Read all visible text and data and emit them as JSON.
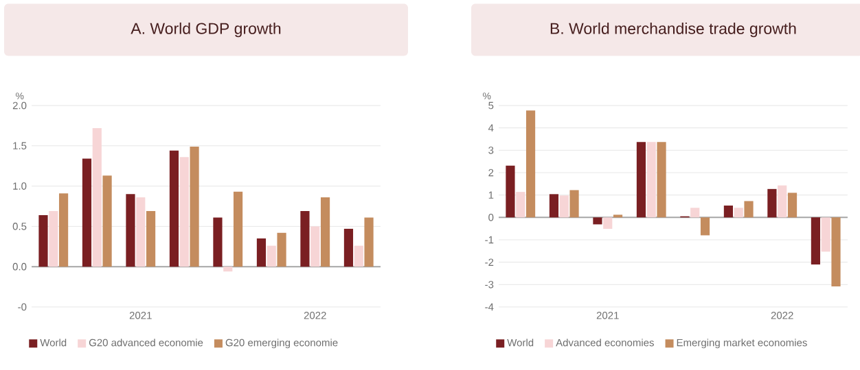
{
  "chart_data": [
    {
      "type": "bar",
      "title": "A. World GDP growth",
      "ylabel": "%",
      "categories": [
        null,
        null,
        "2021",
        null,
        null,
        null,
        "2022",
        null
      ],
      "series": [
        {
          "name": "World",
          "color": "#7a1f22",
          "values": [
            0.64,
            1.34,
            0.9,
            1.44,
            0.61,
            0.35,
            0.69,
            0.47
          ]
        },
        {
          "name": "G20 advanced economie",
          "color": "#f7d5d6",
          "values": [
            0.69,
            1.72,
            0.86,
            1.36,
            -0.06,
            0.26,
            0.5,
            0.26
          ]
        },
        {
          "name": "G20 emerging economie",
          "color": "#c48c5e",
          "values": [
            0.91,
            1.13,
            0.69,
            1.49,
            0.93,
            0.42,
            0.86,
            0.61
          ]
        }
      ],
      "ylim": [
        -0.5,
        2.0
      ],
      "yticks": [
        {
          "value": -0.5,
          "label": "-0"
        },
        {
          "value": 0,
          "label": "0.0"
        },
        {
          "value": 0.5,
          "label": "0.5"
        },
        {
          "value": 1.0,
          "label": "1.0"
        },
        {
          "value": 1.5,
          "label": "1.5"
        },
        {
          "value": 2.0,
          "label": "2.0"
        }
      ],
      "grid": "y",
      "legend": "bottom"
    },
    {
      "type": "bar",
      "title": "B. World merchandise trade growth",
      "ylabel": "%",
      "categories": [
        null,
        null,
        "2021",
        null,
        null,
        null,
        "2022",
        null
      ],
      "series": [
        {
          "name": "World",
          "color": "#7a1f22",
          "values": [
            2.31,
            1.04,
            -0.31,
            3.37,
            0.05,
            0.53,
            1.27,
            -2.1
          ]
        },
        {
          "name": "Advanced economies",
          "color": "#f7d5d6",
          "values": [
            1.14,
            0.98,
            -0.51,
            3.37,
            0.43,
            0.43,
            1.43,
            -1.53
          ]
        },
        {
          "name": "Emerging market economies",
          "color": "#c48c5e",
          "values": [
            4.78,
            1.22,
            0.12,
            3.37,
            -0.8,
            0.73,
            1.1,
            -3.08
          ]
        }
      ],
      "ylim": [
        -4,
        5
      ],
      "yticks": [
        -4,
        -3,
        -2,
        -1,
        0,
        1,
        2,
        3,
        4,
        5
      ],
      "grid": "y",
      "legend": "bottom"
    }
  ]
}
